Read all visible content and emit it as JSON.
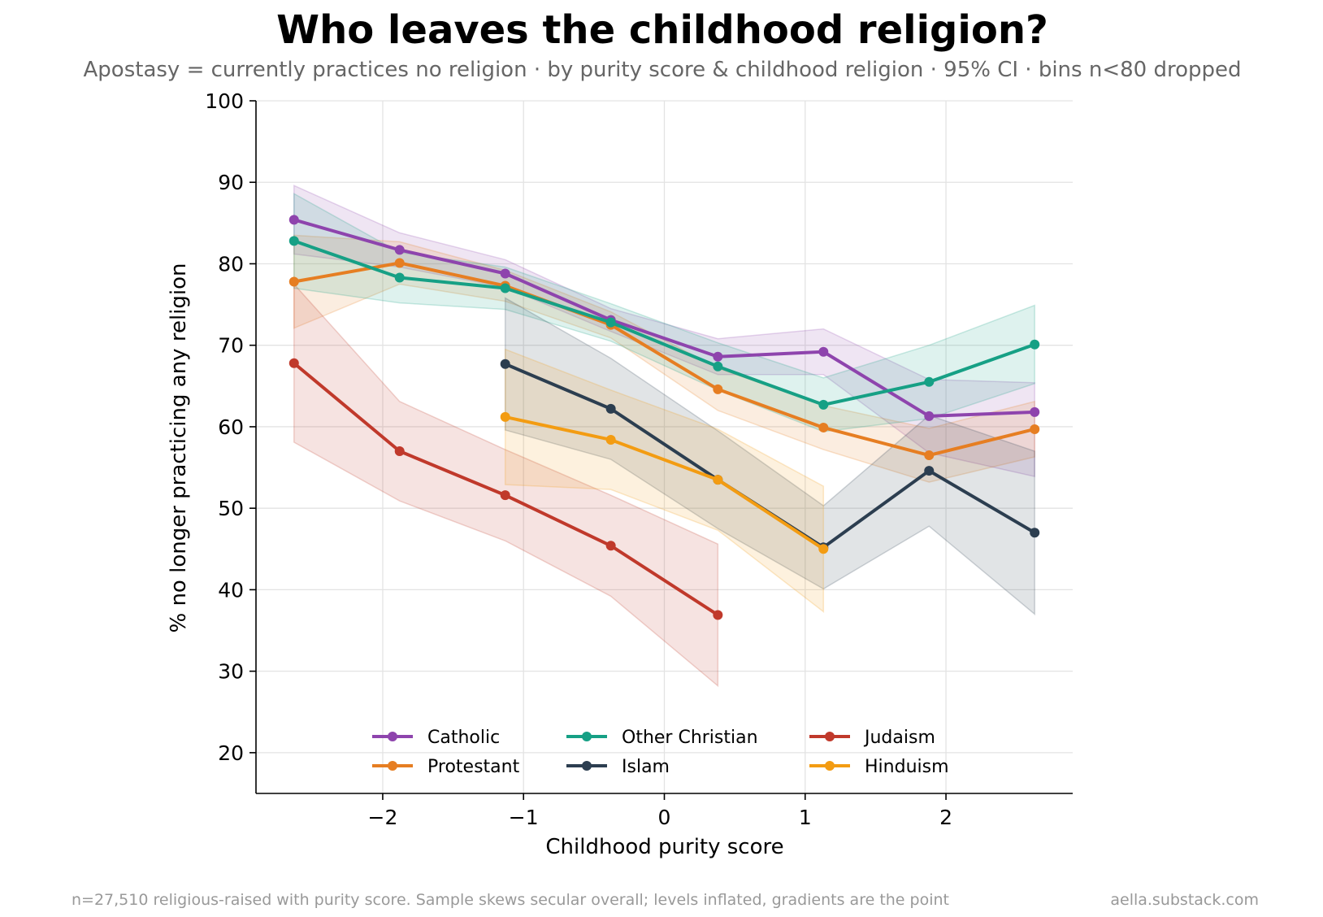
{
  "chart_data": {
    "type": "line",
    "title": "Who leaves the childhood religion?",
    "subtitle": "Apostasy = currently practices no religion · by purity score & childhood religion · 95% CI · bins n<80 dropped",
    "xlabel": "Childhood purity score",
    "ylabel": "% no longer practicing any religion",
    "xlim": [
      -2.9,
      2.9
    ],
    "ylim": [
      15,
      100
    ],
    "xticks": [
      -2,
      -1,
      0,
      1,
      2
    ],
    "xtick_labels": [
      "−2",
      "−1",
      "0",
      "1",
      "2"
    ],
    "yticks": [
      20,
      30,
      40,
      50,
      60,
      70,
      80,
      90,
      100
    ],
    "ytick_labels": [
      "20",
      "30",
      "40",
      "50",
      "60",
      "70",
      "80",
      "90",
      "100"
    ],
    "grid": true,
    "legend": {
      "placement": "lower-center",
      "columns": 3
    },
    "series": [
      {
        "name": "Catholic",
        "color": "#8e44ad",
        "x": [
          -2.63,
          -1.88,
          -1.13,
          -0.38,
          0.38,
          1.13,
          1.88,
          2.63
        ],
        "y": [
          85.4,
          81.7,
          78.8,
          73.1,
          68.6,
          69.2,
          61.3,
          61.8
        ],
        "lower": [
          81.2,
          79.6,
          77.1,
          71.7,
          66.4,
          66.4,
          56.8,
          53.9
        ],
        "upper": [
          89.6,
          83.8,
          80.5,
          74.5,
          70.8,
          72.0,
          65.8,
          65.4
        ]
      },
      {
        "name": "Protestant",
        "color": "#e67e22",
        "x": [
          -2.63,
          -1.88,
          -1.13,
          -0.38,
          0.38,
          1.13,
          1.88,
          2.63
        ],
        "y": [
          77.8,
          80.1,
          77.3,
          72.5,
          64.6,
          59.9,
          56.5,
          59.7
        ],
        "lower": [
          72.1,
          77.5,
          75.4,
          70.9,
          62.0,
          57.2,
          53.2,
          56.3
        ],
        "upper": [
          83.5,
          82.7,
          79.2,
          74.1,
          67.2,
          62.6,
          59.8,
          63.1
        ]
      },
      {
        "name": "Other Christian",
        "color": "#16a085",
        "x": [
          -2.63,
          -1.88,
          -1.13,
          -0.38,
          0.38,
          1.13,
          1.88,
          2.63
        ],
        "y": [
          82.8,
          78.3,
          77.0,
          72.8,
          67.4,
          62.7,
          65.5,
          70.1
        ],
        "lower": [
          77.0,
          75.2,
          74.4,
          70.5,
          64.5,
          59.4,
          61.0,
          65.3
        ],
        "upper": [
          88.6,
          81.4,
          79.6,
          75.1,
          70.3,
          66.0,
          70.0,
          74.9
        ]
      },
      {
        "name": "Islam",
        "color": "#2c3e50",
        "x": [
          -1.13,
          -0.38,
          0.38,
          1.13,
          1.88,
          2.63
        ],
        "y": [
          67.7,
          62.2,
          53.5,
          45.2,
          54.6,
          47.0
        ],
        "lower": [
          59.6,
          56.0,
          47.5,
          40.1,
          47.8,
          37.0
        ],
        "upper": [
          75.8,
          68.4,
          59.5,
          50.3,
          61.4,
          57.0
        ]
      },
      {
        "name": "Judaism",
        "color": "#c0392b",
        "x": [
          -2.63,
          -1.88,
          -1.13,
          -0.38,
          0.38
        ],
        "y": [
          67.8,
          57.0,
          51.6,
          45.4,
          36.9
        ],
        "lower": [
          58.1,
          50.9,
          46.0,
          39.2,
          28.2
        ],
        "upper": [
          77.5,
          63.1,
          57.2,
          51.6,
          45.6
        ]
      },
      {
        "name": "Hinduism",
        "color": "#f39c12",
        "x": [
          -1.13,
          -0.38,
          0.38,
          1.13
        ],
        "y": [
          61.2,
          58.4,
          53.5,
          45.0
        ],
        "lower": [
          52.9,
          52.3,
          47.3,
          37.3
        ],
        "upper": [
          69.5,
          64.5,
          59.7,
          52.7
        ]
      }
    ],
    "footer_left": "n=27,510 religious-raised with purity score. Sample skews secular overall; levels inflated, gradients are the point",
    "footer_right": "aella.substack.com"
  }
}
